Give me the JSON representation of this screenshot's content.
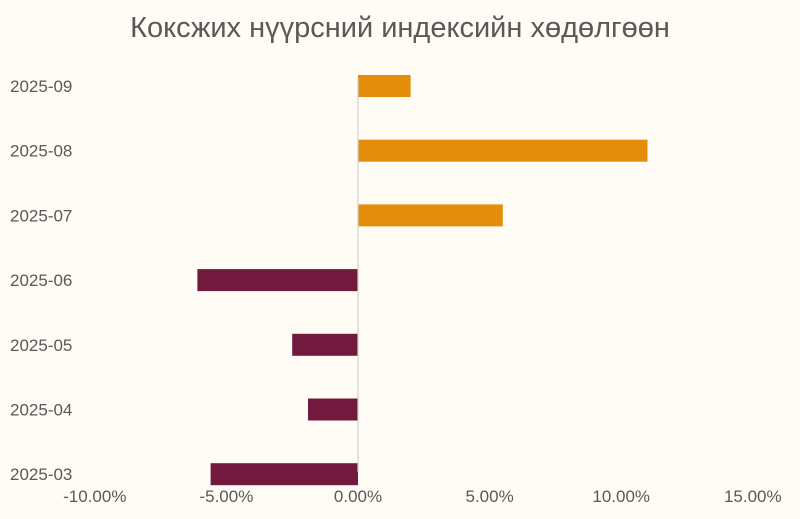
{
  "chart_data": {
    "type": "bar",
    "orientation": "horizontal",
    "title": "Коксжих нүүрсний индексийн хөдөлгөөн",
    "categories": [
      "2025-03",
      "2025-04",
      "2025-05",
      "2025-06",
      "2025-07",
      "2025-08",
      "2025-09"
    ],
    "values": [
      -5.6,
      -1.9,
      -2.5,
      -6.1,
      5.5,
      11.0,
      2.0
    ],
    "value_format": "percent",
    "xlim": [
      -10,
      15
    ],
    "xticks": [
      -10,
      -5,
      0,
      5,
      10,
      15
    ],
    "xtick_labels": [
      "-10.00%",
      "-5.00%",
      "0.00%",
      "5.00%",
      "10.00%",
      "15.00%"
    ],
    "grid": false,
    "legend": "none",
    "colors": {
      "positive": "#e38d0a",
      "negative": "#721a3e",
      "axis": "#d0d0d0",
      "text": "#595959",
      "background": "#fffcf5"
    }
  }
}
